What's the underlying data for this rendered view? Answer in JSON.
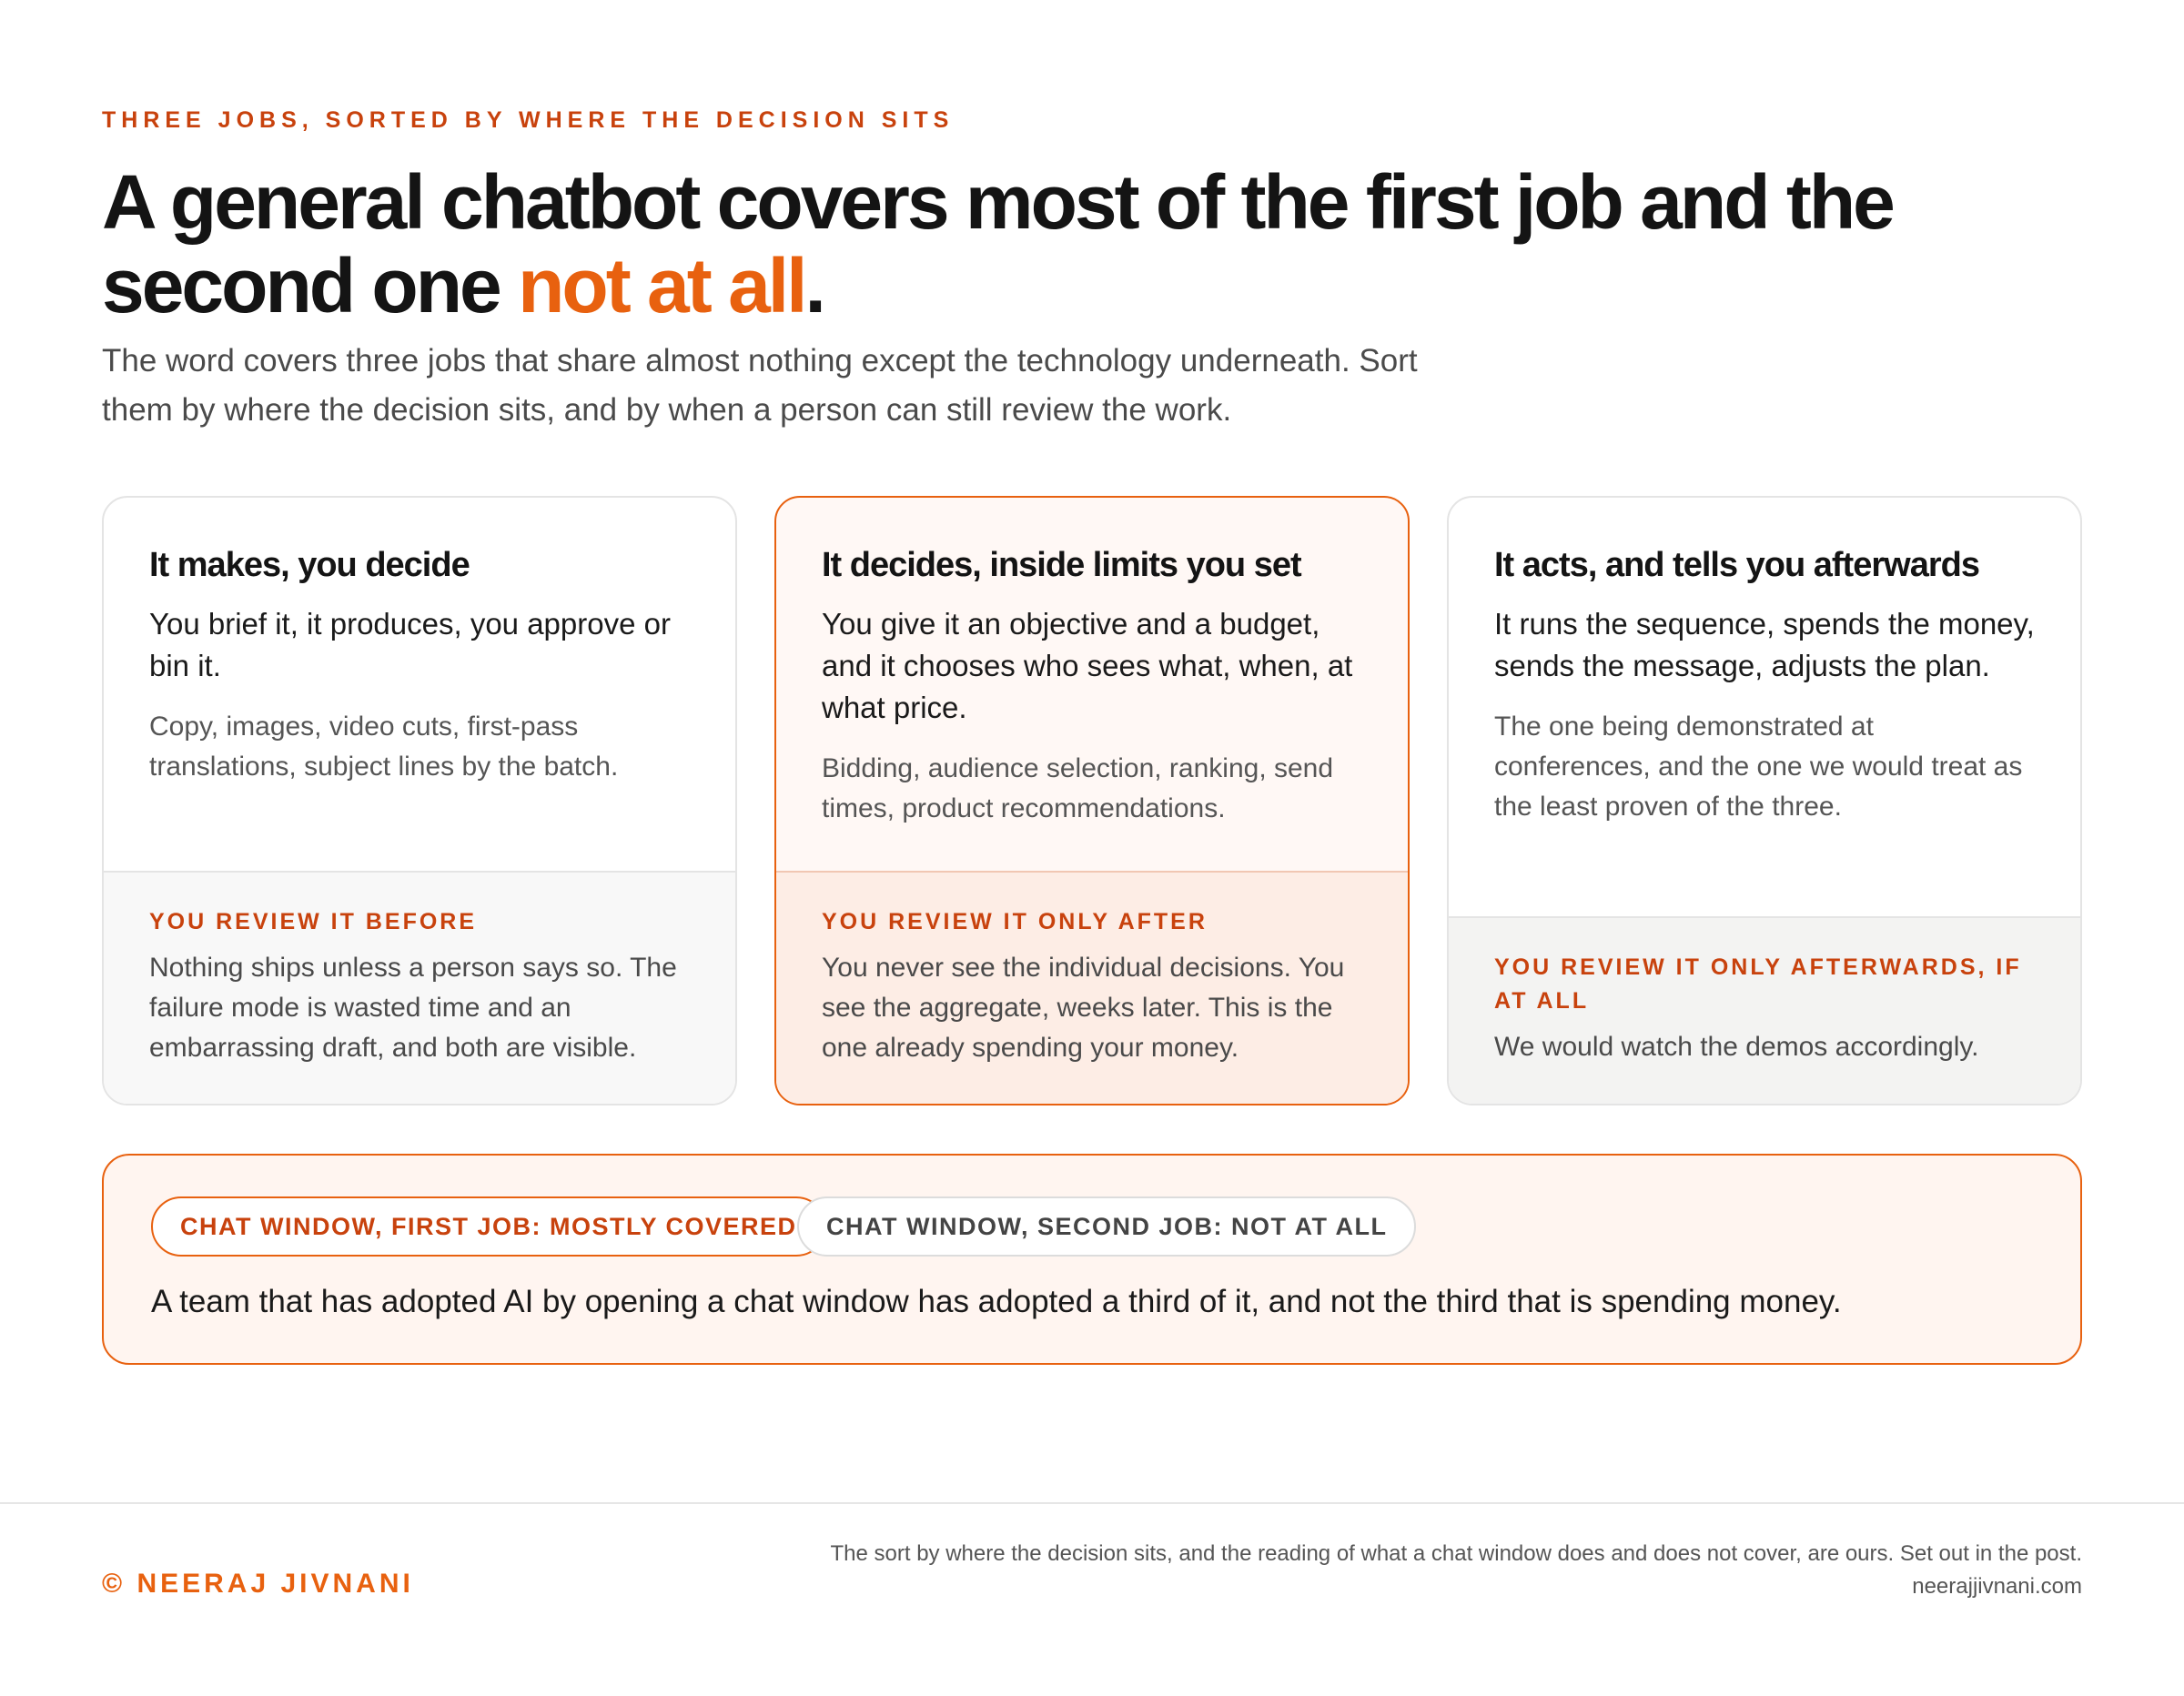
{
  "eyebrow": "Three jobs, sorted by where the decision sits",
  "headline": {
    "main": "A general chatbot covers most of the first job and the second one ",
    "accent": "not at all",
    "end": "."
  },
  "lede": "The word covers three jobs that share almost nothing except the technology underneath. Sort them by where the decision sits, and by when a person can still review the work.",
  "cards": [
    {
      "title": "It makes, you decide",
      "lead": "You brief it, it produces, you approve or bin it.",
      "detail": "Copy, images, video cuts, first-pass translations, subject lines by the batch.",
      "review_label": "You review it before",
      "review_text": "Nothing ships unless a person says so. The failure mode is wasted time and an embarrassing draft, and both are visible."
    },
    {
      "title": "It decides, inside limits you set",
      "lead": "You give it an objective and a budget, and it chooses who sees what, when, at what price.",
      "detail": "Bidding, audience selection, ranking, send times, product recommendations.",
      "review_label": "You review it only after",
      "review_text": "You never see the individual decisions. You see the aggregate, weeks later. This is the one already spending your money."
    },
    {
      "title": "It acts, and tells you afterwards",
      "lead": "It runs the sequence, spends the money, sends the message, adjusts the plan.",
      "detail": "The one being demonstrated at conferences, and the one we would treat as the least proven of the three.",
      "review_label": "You review it only afterwards, if at all",
      "review_text": "We would watch the demos accordingly."
    }
  ],
  "callout": {
    "pill_first": "Chat window, first job: mostly covered",
    "pill_second": "Chat window, second job: not at all",
    "text": "A team that has adopted AI by opening a chat window has adopted a third of it, and not the third that is spending money."
  },
  "footer": {
    "brand": "© Neeraj Jivnani",
    "note": "The sort by where the decision sits, and the reading of what a chat window does and does not cover, are ours. Set out in the post.",
    "site": "neerajjivnani.com"
  },
  "colors": {
    "accent": "#e8610f",
    "accent_dark": "#c8420d",
    "text": "#141414",
    "muted": "#4a4a4a"
  }
}
